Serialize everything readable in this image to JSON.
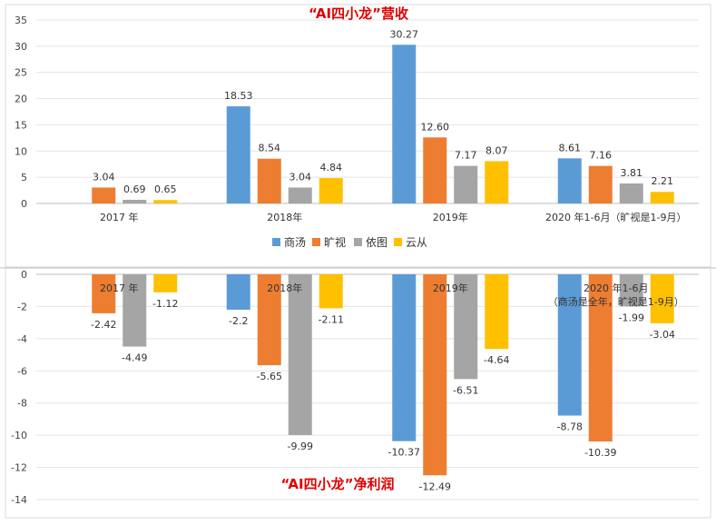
{
  "chart_data": [
    {
      "type": "bar",
      "title": "“AI四小龙”营收",
      "categories": [
        "2017 年",
        "2018年",
        "2019年",
        "2020 年1-6月（旷视是1-9月）"
      ],
      "ylim": [
        0,
        35
      ],
      "yticks": [
        0,
        5,
        10,
        15,
        20,
        25,
        30,
        35
      ],
      "grid": true,
      "legend_position": "bottom",
      "series": [
        {
          "name": "商汤",
          "color": "#5B9BD5",
          "values": [
            null,
            18.53,
            30.27,
            8.61
          ],
          "labels": [
            "",
            "18.53",
            "30.27",
            "8.61"
          ]
        },
        {
          "name": "旷视",
          "color": "#ED7D31",
          "values": [
            3.04,
            8.54,
            12.6,
            7.16
          ],
          "labels": [
            "3.04",
            "8.54",
            "12.60",
            "7.16"
          ]
        },
        {
          "name": "依图",
          "color": "#A5A5A5",
          "values": [
            0.69,
            3.04,
            7.17,
            3.81
          ],
          "labels": [
            "0.69",
            "3.04",
            "7.17",
            "3.81"
          ]
        },
        {
          "name": "云从",
          "color": "#FFC000",
          "values": [
            0.65,
            4.84,
            8.07,
            2.21
          ],
          "labels": [
            "0.65",
            "4.84",
            "8.07",
            "2.21"
          ]
        }
      ]
    },
    {
      "type": "bar",
      "title": "“AI四小龙”净利润",
      "categories": [
        "2017 年",
        "2018年",
        "2019年",
        "2020 年1-6月"
      ],
      "category_note": [
        "",
        "",
        "",
        "（商汤是全年，旷视是1-9月）"
      ],
      "ylim": [
        -14,
        0
      ],
      "yticks": [
        0,
        -2,
        -4,
        -6,
        -8,
        -10,
        -12,
        -14
      ],
      "grid": true,
      "series": [
        {
          "name": "商汤",
          "color": "#5B9BD5",
          "values": [
            null,
            -2.2,
            -10.37,
            -8.78
          ],
          "labels": [
            "",
            "-2.2",
            "-10.37",
            "-8.78"
          ]
        },
        {
          "name": "旷视",
          "color": "#ED7D31",
          "values": [
            -2.42,
            -5.65,
            -12.49,
            -10.39
          ],
          "labels": [
            "-2.42",
            "-5.65",
            "-12.49",
            "-10.39"
          ]
        },
        {
          "name": "依图",
          "color": "#A5A5A5",
          "values": [
            -4.49,
            -9.99,
            -6.51,
            -1.99
          ],
          "labels": [
            "-4.49",
            "-9.99",
            "-6.51",
            "-1.99"
          ]
        },
        {
          "name": "云从",
          "color": "#FFC000",
          "values": [
            -1.12,
            -2.11,
            -4.64,
            -3.04
          ],
          "labels": [
            "-1.12",
            "-2.11",
            "-4.64",
            "-3.04"
          ]
        }
      ]
    }
  ]
}
